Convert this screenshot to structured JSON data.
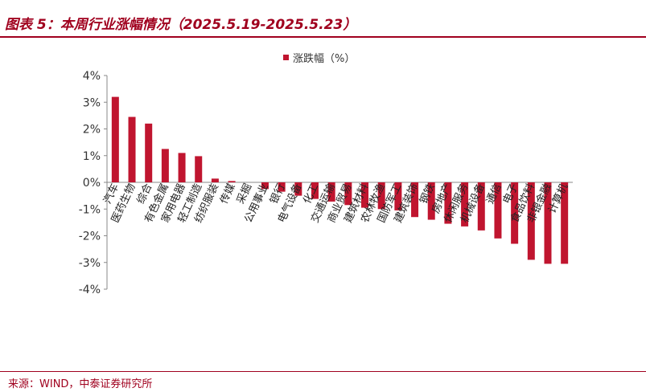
{
  "header_fragment": "…",
  "title": "图表 5：本周行业涨幅情况（2025.5.19-2025.5.23）",
  "source": "来源：WIND，中泰证券研究所",
  "colors": {
    "accent": "#a0001e",
    "bar": "#c0152f"
  },
  "chart_data": {
    "type": "bar",
    "categories": [
      "汽车",
      "医药生物",
      "综合",
      "有色金属",
      "家用电器",
      "轻工制造",
      "纺织服装",
      "传媒",
      "采掘",
      "公用事业",
      "银行",
      "电气设备",
      "化工",
      "交通运输",
      "商业贸易",
      "建筑材料",
      "农林牧渔",
      "国防军工",
      "建筑装饰",
      "钢铁",
      "房地产",
      "休闲服务",
      "机械设备",
      "通信",
      "电子",
      "食品饮料",
      "非银金融",
      "计算机"
    ],
    "series": [
      {
        "name": "涨跌幅（%）",
        "values": [
          3.2,
          2.45,
          2.2,
          1.25,
          1.1,
          0.98,
          0.14,
          0.05,
          0.0,
          -0.25,
          -0.35,
          -0.5,
          -0.62,
          -0.72,
          -0.85,
          -0.95,
          -1.0,
          -1.05,
          -1.3,
          -1.4,
          -1.55,
          -1.65,
          -1.8,
          -2.1,
          -2.3,
          -2.9,
          -3.05,
          -3.05
        ]
      }
    ],
    "yticks": [
      "4%",
      "3%",
      "2%",
      "1%",
      "0%",
      "-1%",
      "-2%",
      "-3%",
      "-4%"
    ],
    "ylim": [
      -4,
      4
    ],
    "legend": "top-center",
    "grid": false
  }
}
